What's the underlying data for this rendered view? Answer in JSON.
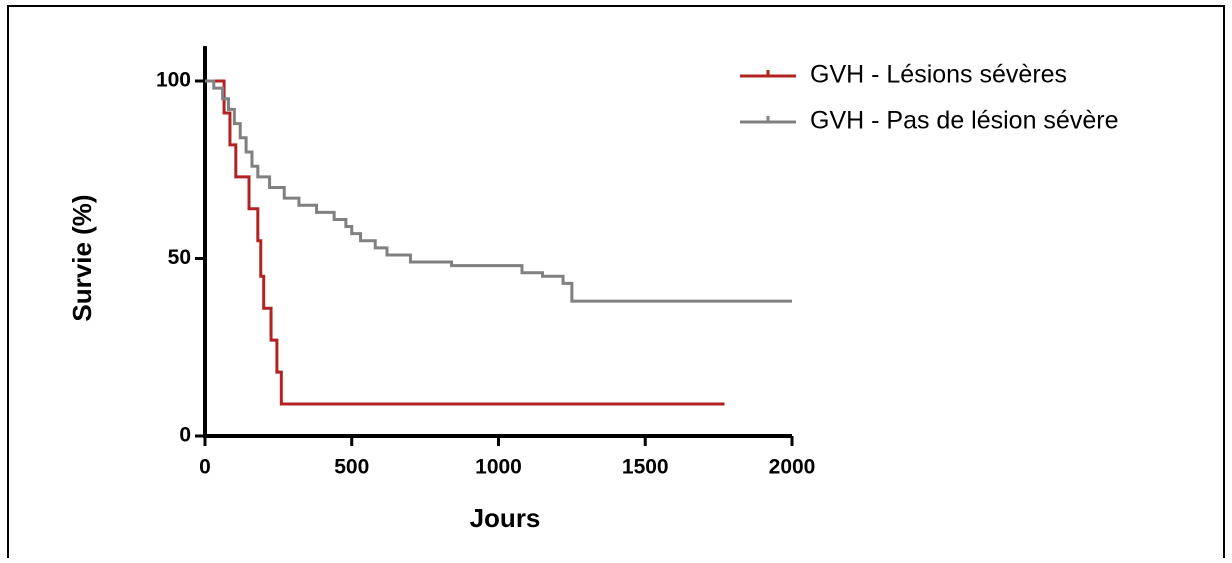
{
  "chart_data": {
    "type": "line",
    "step": true,
    "xlabel": "Jours",
    "ylabel": "Survie (%)",
    "xlim": [
      0,
      2000
    ],
    "xticks": [
      0,
      500,
      1000,
      1500,
      2000
    ],
    "ylim": [
      0,
      100
    ],
    "yticks": [
      0,
      50,
      100
    ],
    "legend": "upper right",
    "series": [
      {
        "name": "GVH - Lésions sévères",
        "color": "#b22222",
        "x": [
          0,
          65,
          85,
          105,
          150,
          180,
          190,
          200,
          225,
          245,
          260,
          320,
          1770
        ],
        "values": [
          100,
          91,
          82,
          73,
          64,
          55,
          45,
          36,
          27,
          18,
          9,
          9,
          9
        ]
      },
      {
        "name": "GVH - Pas de lésion sévère",
        "color": "#808080",
        "x": [
          0,
          30,
          60,
          80,
          100,
          120,
          140,
          160,
          180,
          220,
          270,
          320,
          380,
          440,
          480,
          500,
          530,
          580,
          620,
          700,
          840,
          1080,
          1150,
          1220,
          1250,
          2000
        ],
        "values": [
          100,
          98,
          95,
          92,
          88,
          84,
          80,
          76,
          73,
          70,
          67,
          65,
          63,
          61,
          59,
          57,
          55,
          53,
          51,
          49,
          48,
          46,
          45,
          43,
          38,
          38
        ]
      }
    ]
  }
}
